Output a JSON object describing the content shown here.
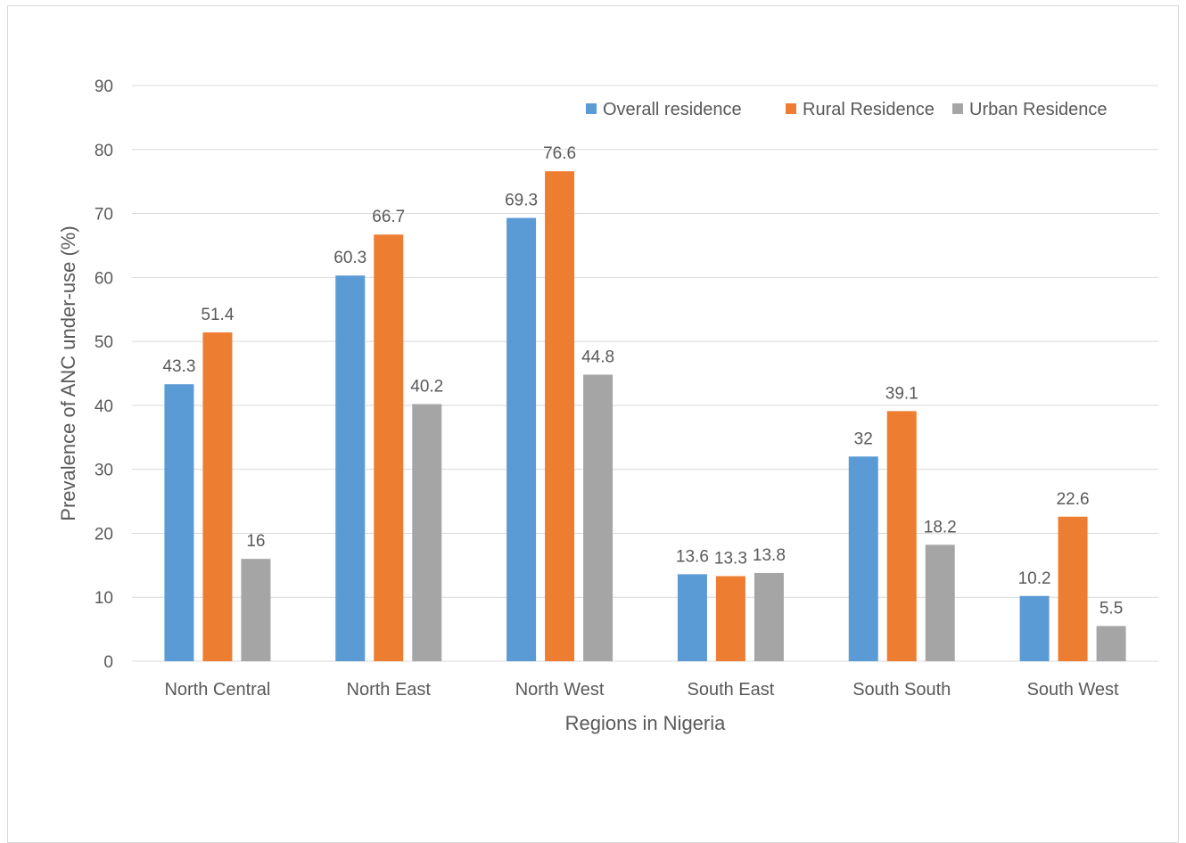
{
  "chart_data": {
    "type": "bar",
    "title": "",
    "xlabel": "Regions in Nigeria",
    "ylabel": "Prevalence of ANC under-use (%)",
    "ylim": [
      0,
      90
    ],
    "yticks": [
      0,
      10,
      20,
      30,
      40,
      50,
      60,
      70,
      80,
      90
    ],
    "grid": true,
    "legend_position": "top-right",
    "categories": [
      "North Central",
      "North East",
      "North West",
      "South East",
      "South South",
      "South West"
    ],
    "series": [
      {
        "name": "Overall residence",
        "color": "#5b9bd5",
        "values": [
          43.3,
          60.3,
          69.3,
          13.6,
          32,
          10.2
        ]
      },
      {
        "name": "Rural Residence",
        "color": "#ed7d31",
        "values": [
          51.4,
          66.7,
          76.6,
          13.3,
          39.1,
          22.6
        ]
      },
      {
        "name": "Urban Residence",
        "color": "#a5a5a5",
        "values": [
          16,
          40.2,
          44.8,
          13.8,
          18.2,
          5.5
        ]
      }
    ]
  }
}
